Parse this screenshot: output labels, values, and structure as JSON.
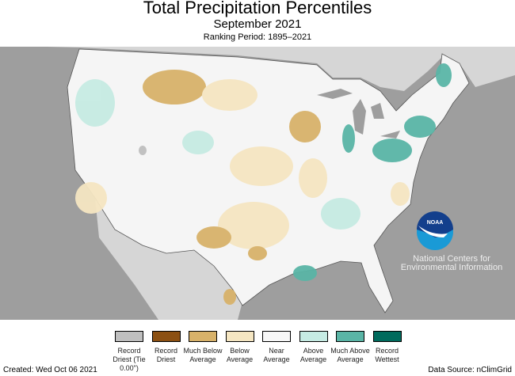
{
  "header": {
    "title": "Total Precipitation Percentiles",
    "subtitle": "September 2021",
    "ranking_period": "Ranking Period: 1895–2021"
  },
  "logo": {
    "name": "NOAA",
    "org": "National Centers for Environmental Information"
  },
  "legend": [
    {
      "label": "Record Driest (Tie 0.00\")",
      "color": "#bfbfbf"
    },
    {
      "label": "Record Driest",
      "color": "#8c5012"
    },
    {
      "label": "Much Below Average",
      "color": "#d8b26a"
    },
    {
      "label": "Below Average",
      "color": "#f5e6c2"
    },
    {
      "label": "Near Average",
      "color": "#f7f7f7"
    },
    {
      "label": "Above Average",
      "color": "#c6ebe3"
    },
    {
      "label": "Much Above Average",
      "color": "#5ab5a6"
    },
    {
      "label": "Record Wettest",
      "color": "#006b5d"
    }
  ],
  "footer": {
    "created": "Created: Wed Oct 06 2021",
    "source": "Data Source: nClimGrid"
  }
}
